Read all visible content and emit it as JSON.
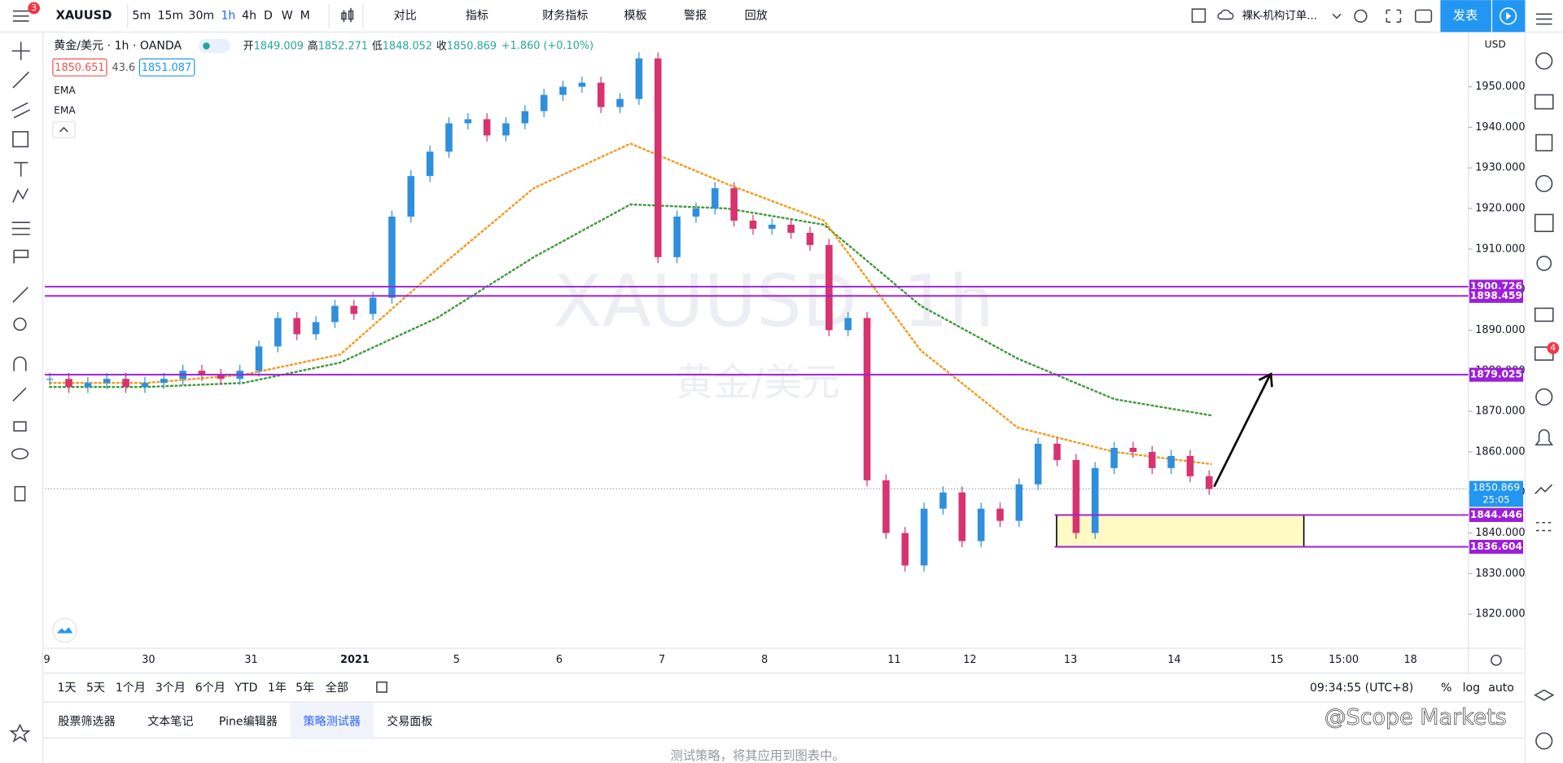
{
  "toolbar": {
    "badge": "3",
    "symbol": "XAUUSD",
    "intervals": [
      "5m",
      "15m",
      "30m",
      "1h",
      "4h",
      "D",
      "W",
      "M"
    ],
    "active_interval": 3,
    "buttons": [
      "对比",
      "指标",
      "财务指标",
      "模板",
      "警报",
      "回放"
    ],
    "layout": "裸K-机构订单...",
    "publish": "发表"
  },
  "legend": {
    "title": "黄金/美元 · 1h · OANDA",
    "ohlc": [
      {
        "key": "开",
        "value": 1849.009
      },
      {
        "key": "高",
        "value": 1852.271
      },
      {
        "key": "低",
        "value": 1848.052
      },
      {
        "key": "收",
        "value": 1850.869
      }
    ],
    "change": "+1.860 (+0.10%)",
    "bid": 1850.651,
    "spread": 43.6,
    "ask": 1851.087,
    "studies": [
      "EMA",
      "EMA"
    ]
  },
  "chart": {
    "watermark": "XAUUSD, 1h",
    "watermark_sub": "黄金/美元",
    "currency": "USD",
    "ylim": [
      1811.6,
      1963.5
    ],
    "yticks": [
      {
        "value": 1820,
        "label": "1820.000"
      },
      {
        "value": 1830,
        "label": "1830.000"
      },
      {
        "value": 1840,
        "label": "1840.000"
      },
      {
        "value": 1850,
        "label": "1850.000"
      },
      {
        "value": 1860,
        "label": "1860.000"
      },
      {
        "value": 1870,
        "label": "1870.000"
      },
      {
        "value": 1880,
        "label": "1880.000"
      },
      {
        "value": 1890,
        "label": "1890.000"
      },
      {
        "value": 1900,
        "label": "1900.000"
      },
      {
        "value": 1910,
        "label": "1910.000"
      },
      {
        "value": 1920,
        "label": "1920.000"
      },
      {
        "value": 1930,
        "label": "1930.000"
      },
      {
        "value": 1940,
        "label": "1940.000"
      },
      {
        "value": 1950,
        "label": "1950.000"
      }
    ],
    "closes": [
      1878,
      1876,
      1877,
      1878,
      1876,
      1877,
      1878,
      1880,
      1879,
      1878,
      1880,
      1886,
      1893,
      1889,
      1892,
      1896,
      1894,
      1898,
      1918,
      1928,
      1934,
      1941,
      1942,
      1938,
      1941,
      1944,
      1948,
      1950,
      1951,
      1945,
      1947,
      1957,
      1908,
      1918,
      1920,
      1925,
      1917,
      1915,
      1916,
      1914,
      1911,
      1890,
      1893,
      1853,
      1840,
      1832,
      1846,
      1850,
      1838,
      1846,
      1843,
      1852,
      1862,
      1858,
      1840,
      1856,
      1861,
      1860,
      1856,
      1859,
      1854,
      1850.869
    ],
    "ema_fast": [
      1877,
      1877,
      1879,
      1884,
      1905,
      1925,
      1936,
      1926,
      1917,
      1885,
      1866,
      1860,
      1857
    ],
    "ema_slow": [
      1876,
      1876,
      1877,
      1882,
      1893,
      1908,
      1921,
      1920,
      1916,
      1896,
      1883,
      1873,
      1869
    ],
    "levels": [
      1900.726,
      1898.459,
      1879.025,
      1844.446,
      1836.604
    ],
    "level_color": "#9c1fd8",
    "last_price": 1850.869,
    "countdown": "25:05",
    "zone": [
      1844.446,
      1836.604
    ],
    "up_color": "#2f8fdc",
    "down_color": "#d7336f",
    "ema_fast_color": "#f39a1e",
    "ema_slow_color": "#3f9a3a",
    "time_labels": [
      "9",
      "30",
      "31",
      "2021",
      "5",
      "6",
      "7",
      "8",
      "11",
      "12",
      "13",
      "14",
      "15",
      "15:00",
      "18"
    ]
  },
  "ranges": [
    "1天",
    "5天",
    "1个月",
    "3个月",
    "6个月",
    "YTD",
    "1年",
    "5年",
    "全部"
  ],
  "clock": "09:34:55 (UTC+8)",
  "scale_opts": [
    "%",
    "log",
    "auto"
  ],
  "tabs": [
    "股票筛选器",
    "文本笔记",
    "Pine编辑器",
    "策略测试器",
    "交易面板"
  ],
  "active_tab": 3,
  "panel_text": "测试策略，将其应用到图表中。",
  "alert_badge": "4",
  "credit": "@Scope Markets"
}
